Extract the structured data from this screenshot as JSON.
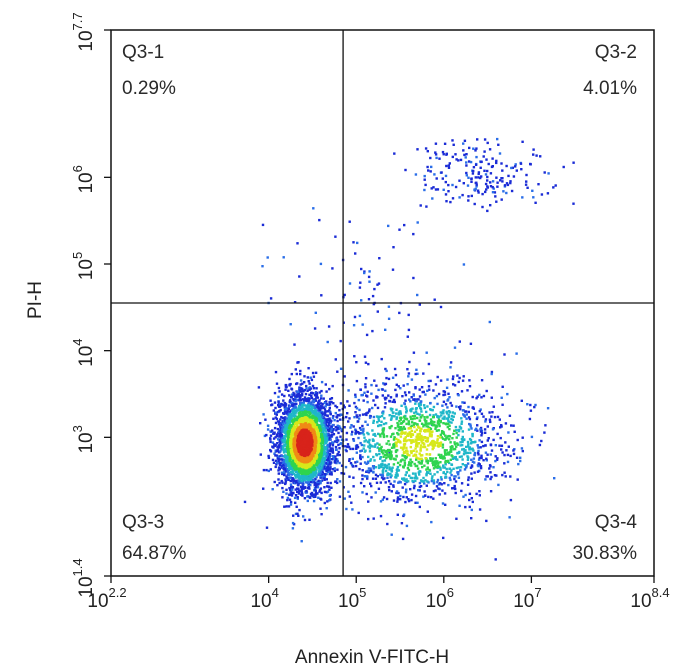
{
  "chart_data": {
    "type": "scatter",
    "title": "",
    "xlabel": "Annexin V-FITC-H",
    "ylabel": "PI-H",
    "x_scale": "log10",
    "y_scale": "log10",
    "xlim_exp": [
      2.2,
      8.4
    ],
    "ylim_exp": [
      1.4,
      7.7
    ],
    "x_ticks": [
      {
        "base": "10",
        "exp": "2.2",
        "value": 2.2
      },
      {
        "base": "10",
        "exp": "4",
        "value": 4
      },
      {
        "base": "10",
        "exp": "5",
        "value": 5
      },
      {
        "base": "10",
        "exp": "6",
        "value": 6
      },
      {
        "base": "10",
        "exp": "7",
        "value": 7
      },
      {
        "base": "10",
        "exp": "8.4",
        "value": 8.4
      }
    ],
    "y_ticks": [
      {
        "base": "10",
        "exp": "1.4",
        "value": 1.4
      },
      {
        "base": "10",
        "exp": "3",
        "value": 3
      },
      {
        "base": "10",
        "exp": "4",
        "value": 4
      },
      {
        "base": "10",
        "exp": "5",
        "value": 5
      },
      {
        "base": "10",
        "exp": "6",
        "value": 6
      },
      {
        "base": "10",
        "exp": "7.7",
        "value": 7.7
      }
    ],
    "gate": {
      "x_exp": 4.85,
      "y_exp": 4.55
    },
    "quadrants": [
      {
        "name": "Q3-1",
        "percent": "0.29%",
        "position": "top-left"
      },
      {
        "name": "Q3-2",
        "percent": "4.01%",
        "position": "top-right"
      },
      {
        "name": "Q3-3",
        "percent": "64.87%",
        "position": "bottom-left"
      },
      {
        "name": "Q3-4",
        "percent": "30.83%",
        "position": "bottom-right"
      }
    ],
    "populations": [
      {
        "x_exp": 4.4,
        "y_exp": 2.95,
        "sx": 0.16,
        "sy": 0.28,
        "weight": 0.64
      },
      {
        "x_exp": 5.7,
        "y_exp": 2.95,
        "sx": 0.5,
        "sy": 0.35,
        "weight": 0.3
      },
      {
        "x_exp": 6.4,
        "y_exp": 6.05,
        "sx": 0.35,
        "sy": 0.18,
        "weight": 0.04
      },
      {
        "x_exp": 5.2,
        "y_exp": 4.4,
        "sx": 0.55,
        "sy": 0.6,
        "weight": 0.02
      }
    ],
    "density_colors": [
      "#1a2bd6",
      "#2a6ee8",
      "#1fb7c9",
      "#2fd44f",
      "#d7e81b",
      "#f08a16",
      "#d8231b"
    ],
    "grid": false,
    "legend": "none"
  }
}
